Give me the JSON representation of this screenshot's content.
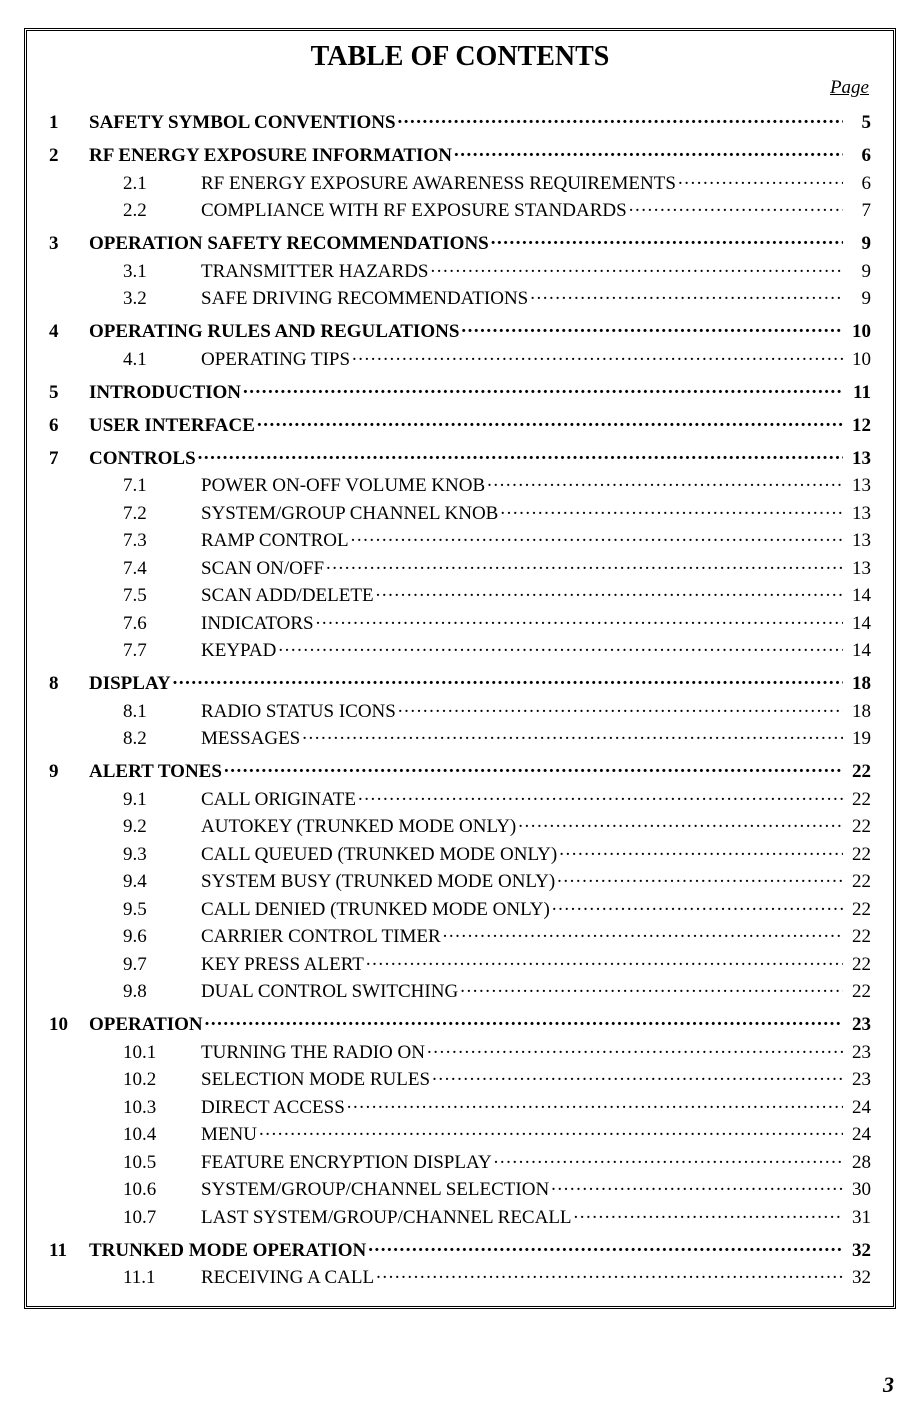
{
  "title": "TABLE OF CONTENTS",
  "page_label": "Page",
  "footer_page_number": "3",
  "toc": [
    {
      "level": 1,
      "num": "1",
      "title": "SAFETY SYMBOL CONVENTIONS",
      "page": "5"
    },
    {
      "level": 1,
      "num": "2",
      "title": "RF ENERGY EXPOSURE INFORMATION",
      "page": "6"
    },
    {
      "level": 2,
      "num": "2.1",
      "title": "RF ENERGY EXPOSURE AWARENESS REQUIREMENTS",
      "page": "6"
    },
    {
      "level": 2,
      "num": "2.2",
      "title": "COMPLIANCE WITH RF EXPOSURE STANDARDS",
      "page": "7"
    },
    {
      "level": 1,
      "num": "3",
      "title": "OPERATION SAFETY RECOMMENDATIONS",
      "page": "9"
    },
    {
      "level": 2,
      "num": "3.1",
      "title": "TRANSMITTER HAZARDS",
      "page": "9"
    },
    {
      "level": 2,
      "num": "3.2",
      "title": "SAFE DRIVING RECOMMENDATIONS",
      "page": "9"
    },
    {
      "level": 1,
      "num": "4",
      "title": "OPERATING RULES AND REGULATIONS",
      "page": "10"
    },
    {
      "level": 2,
      "num": "4.1",
      "title": "OPERATING TIPS",
      "page": "10"
    },
    {
      "level": 1,
      "num": "5",
      "title": "INTRODUCTION",
      "page": "11"
    },
    {
      "level": 1,
      "num": "6",
      "title": "USER INTERFACE",
      "page": "12"
    },
    {
      "level": 1,
      "num": "7",
      "title": "CONTROLS",
      "page": "13"
    },
    {
      "level": 2,
      "num": "7.1",
      "title": "POWER ON-OFF VOLUME KNOB",
      "page": "13"
    },
    {
      "level": 2,
      "num": "7.2",
      "title": "SYSTEM/GROUP CHANNEL KNOB",
      "page": "13"
    },
    {
      "level": 2,
      "num": "7.3",
      "title": "RAMP CONTROL",
      "page": "13"
    },
    {
      "level": 2,
      "num": "7.4",
      "title": "SCAN ON/OFF",
      "page": "13"
    },
    {
      "level": 2,
      "num": "7.5",
      "title": "SCAN ADD/DELETE",
      "page": "14"
    },
    {
      "level": 2,
      "num": "7.6",
      "title": "INDICATORS",
      "page": "14"
    },
    {
      "level": 2,
      "num": "7.7",
      "title": "KEYPAD",
      "page": "14"
    },
    {
      "level": 1,
      "num": "8",
      "title": "DISPLAY",
      "page": "18"
    },
    {
      "level": 2,
      "num": "8.1",
      "title": "RADIO STATUS ICONS",
      "page": "18"
    },
    {
      "level": 2,
      "num": "8.2",
      "title": "MESSAGES",
      "page": "19"
    },
    {
      "level": 1,
      "num": "9",
      "title": "ALERT TONES",
      "page": "22"
    },
    {
      "level": 2,
      "num": "9.1",
      "title": "CALL ORIGINATE",
      "page": "22"
    },
    {
      "level": 2,
      "num": "9.2",
      "title": "AUTOKEY (TRUNKED MODE ONLY)",
      "page": "22"
    },
    {
      "level": 2,
      "num": "9.3",
      "title": "CALL QUEUED (TRUNKED MODE ONLY)",
      "page": "22"
    },
    {
      "level": 2,
      "num": "9.4",
      "title": "SYSTEM BUSY (TRUNKED MODE ONLY)",
      "page": "22"
    },
    {
      "level": 2,
      "num": "9.5",
      "title": "CALL DENIED (TRUNKED MODE ONLY)",
      "page": "22"
    },
    {
      "level": 2,
      "num": "9.6",
      "title": "CARRIER CONTROL TIMER",
      "page": "22"
    },
    {
      "level": 2,
      "num": "9.7",
      "title": "KEY PRESS ALERT",
      "page": "22"
    },
    {
      "level": 2,
      "num": "9.8",
      "title": "DUAL CONTROL SWITCHING",
      "page": "22"
    },
    {
      "level": 1,
      "num": "10",
      "title": "OPERATION",
      "page": "23"
    },
    {
      "level": 2,
      "num": "10.1",
      "title": "TURNING THE RADIO ON",
      "page": "23"
    },
    {
      "level": 2,
      "num": "10.2",
      "title": "SELECTION MODE RULES",
      "page": "23"
    },
    {
      "level": 2,
      "num": "10.3",
      "title": "DIRECT ACCESS",
      "page": "24"
    },
    {
      "level": 2,
      "num": "10.4",
      "title": "MENU",
      "page": "24"
    },
    {
      "level": 2,
      "num": "10.5",
      "title": "FEATURE ENCRYPTION DISPLAY",
      "page": "28"
    },
    {
      "level": 2,
      "num": "10.6",
      "title": "SYSTEM/GROUP/CHANNEL SELECTION",
      "page": "30"
    },
    {
      "level": 2,
      "num": "10.7",
      "title": "LAST SYSTEM/GROUP/CHANNEL RECALL",
      "page": "31"
    },
    {
      "level": 1,
      "num": "11",
      "title": "TRUNKED MODE OPERATION",
      "page": "32"
    },
    {
      "level": 2,
      "num": "11.1",
      "title": "RECEIVING A CALL",
      "page": "32"
    }
  ]
}
